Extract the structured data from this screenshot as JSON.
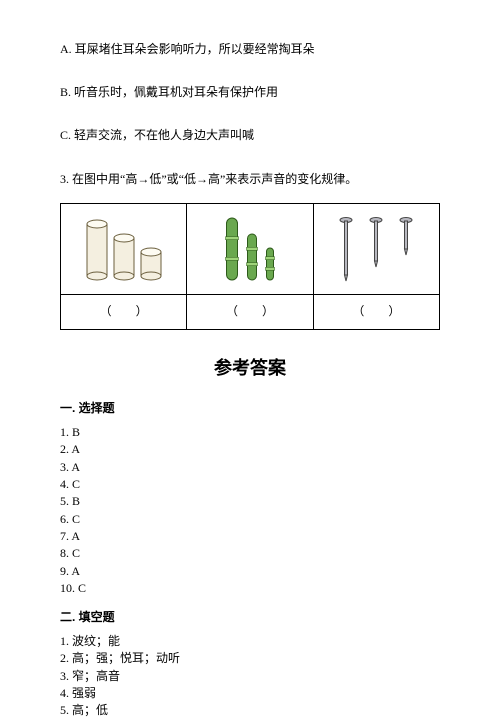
{
  "options": {
    "A": "A. 耳屎堵住耳朵会影响听力，所以要经常掏耳朵",
    "B": "B. 听音乐时，佩戴耳机对耳朵有保护作用",
    "C": "C. 轻声交流，不在他人身边大声叫喊"
  },
  "question3": "3. 在图中用“高→低”或“低→高”来表示声音的变化规律。",
  "table": {
    "blank": "（　　）",
    "cell1": {
      "type": "cylinders",
      "heights": [
        56,
        42,
        28
      ],
      "width": 20,
      "cap_ry": 4,
      "gap": 7,
      "fill": "#f4efe0",
      "stroke": "#6b5f3e",
      "stroke_width": 1
    },
    "cell2": {
      "type": "bamboo",
      "heights": [
        62,
        46,
        32
      ],
      "widths": [
        11,
        9,
        7
      ],
      "gap": 10,
      "fill": "#6aa84f",
      "band": "#9fd47a",
      "stroke": "#2d5a1a",
      "stroke_width": 1
    },
    "cell3": {
      "type": "nails",
      "heights": [
        64,
        50,
        38
      ],
      "cap_w": 12,
      "shaft_w": 3,
      "gap": 18,
      "fill": "#b8b8c0",
      "stroke": "#444444",
      "stroke_width": 1
    }
  },
  "answers_title": "参考答案",
  "section1": {
    "heading": "一. 选择题",
    "items": [
      "1. B",
      "2. A",
      "3. A",
      "4. C",
      "5. B",
      "6. C",
      "7. A",
      "8. C",
      "9. A",
      "10. C"
    ]
  },
  "section2": {
    "heading": "二. 填空题",
    "items": [
      "1. 波纹；能",
      "2. 高；强；悦耳；动听",
      "3. 窄；高音",
      "4. 强弱",
      "5. 高；低"
    ]
  }
}
